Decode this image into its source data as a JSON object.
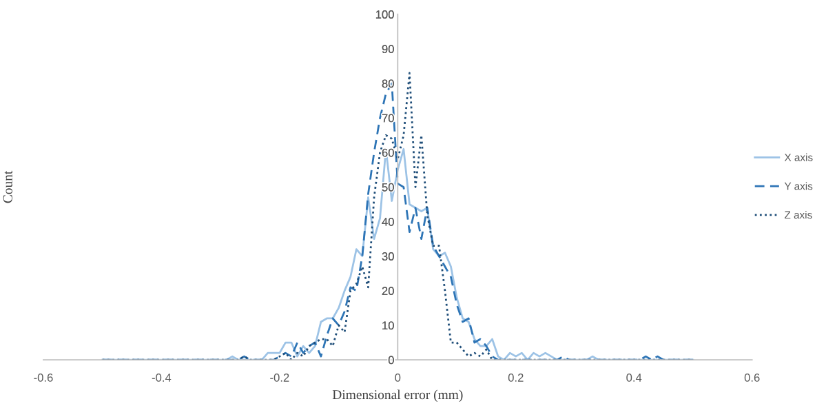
{
  "chart_data": {
    "type": "line",
    "xlabel": "Dimensional error (mm)",
    "ylabel": "Count",
    "x": [
      -0.5,
      -0.49,
      -0.48,
      -0.47,
      -0.46,
      -0.45,
      -0.44,
      -0.43,
      -0.42,
      -0.41,
      -0.4,
      -0.39,
      -0.38,
      -0.37,
      -0.36,
      -0.35,
      -0.34,
      -0.33,
      -0.32,
      -0.31,
      -0.3,
      -0.29,
      -0.28,
      -0.27,
      -0.26,
      -0.25,
      -0.24,
      -0.23,
      -0.22,
      -0.21,
      -0.2,
      -0.19,
      -0.18,
      -0.17,
      -0.16,
      -0.15,
      -0.14,
      -0.13,
      -0.12,
      -0.11,
      -0.1,
      -0.09,
      -0.08,
      -0.07,
      -0.06,
      -0.05,
      -0.04,
      -0.03,
      -0.02,
      -0.01,
      0,
      0.01,
      0.02,
      0.03,
      0.04,
      0.05,
      0.06,
      0.07,
      0.08,
      0.09,
      0.1,
      0.11,
      0.12,
      0.13,
      0.14,
      0.15,
      0.16,
      0.17,
      0.18,
      0.19,
      0.2,
      0.21,
      0.22,
      0.23,
      0.24,
      0.25,
      0.26,
      0.27,
      0.28,
      0.29,
      0.3,
      0.31,
      0.32,
      0.33,
      0.34,
      0.35,
      0.36,
      0.37,
      0.38,
      0.39,
      0.4,
      0.41,
      0.42,
      0.43,
      0.44,
      0.45,
      0.46,
      0.47,
      0.48,
      0.49,
      0.5
    ],
    "series": [
      {
        "name": "X axis",
        "color": "#9dc3e6",
        "line_style": "solid",
        "values": [
          0,
          0,
          0,
          0,
          0,
          0,
          0,
          0,
          0,
          0,
          0,
          0,
          0,
          0,
          0,
          0,
          0,
          0,
          0,
          0,
          0,
          0,
          1,
          0,
          0,
          0,
          0,
          0,
          2,
          2,
          2,
          5,
          5,
          1,
          4,
          2,
          4,
          11,
          12,
          12,
          15,
          20,
          24,
          32,
          30,
          47,
          35,
          41,
          61,
          46,
          55,
          61,
          45,
          44,
          43,
          44,
          32,
          30,
          31,
          27,
          18,
          12,
          11,
          6,
          4,
          4,
          6,
          1,
          0,
          2,
          1,
          2,
          0,
          2,
          1,
          2,
          1,
          0,
          0,
          0,
          0,
          0,
          0,
          1,
          0,
          0,
          0,
          0,
          0,
          0,
          0,
          0,
          0,
          0,
          0,
          0,
          0,
          0,
          0,
          0,
          0
        ]
      },
      {
        "name": "Y axis",
        "color": "#2e75b6",
        "line_style": "dashed",
        "values": [
          0,
          0,
          0,
          0,
          0,
          0,
          0,
          0,
          0,
          0,
          0,
          0,
          0,
          0,
          0,
          0,
          0,
          0,
          0,
          0,
          0,
          0,
          0,
          0,
          1,
          0,
          0,
          0,
          0,
          0,
          1,
          2,
          1,
          5,
          2,
          4,
          5,
          1,
          7,
          12,
          10,
          14,
          21,
          20,
          30,
          48,
          60,
          70,
          77,
          80,
          51,
          50,
          37,
          44,
          35,
          44,
          33,
          30,
          27,
          24,
          16,
          11,
          12,
          5,
          6,
          4,
          1,
          0,
          0,
          0,
          0,
          0,
          0,
          0,
          0,
          0,
          0,
          0,
          1,
          0,
          0,
          0,
          0,
          0,
          0,
          0,
          0,
          0,
          0,
          0,
          0,
          0,
          1,
          0,
          1,
          0,
          0,
          0,
          0,
          0,
          0
        ]
      },
      {
        "name": "Z axis",
        "color": "#1f4e79",
        "line_style": "dotted",
        "values": [
          0,
          0,
          0,
          0,
          0,
          0,
          0,
          0,
          0,
          0,
          0,
          0,
          0,
          0,
          0,
          0,
          0,
          0,
          0,
          0,
          0,
          0,
          0,
          0,
          1,
          0,
          0,
          0,
          0,
          0,
          1,
          2,
          0,
          2,
          1,
          4,
          5,
          6,
          6,
          4,
          10,
          8,
          20,
          22,
          27,
          21,
          47,
          60,
          65,
          64,
          58,
          65,
          83,
          50,
          65,
          42,
          33,
          33,
          20,
          5,
          5,
          3,
          1,
          2,
          1,
          3,
          0,
          0,
          0,
          0,
          0,
          0,
          0,
          0,
          0,
          0,
          0,
          0,
          0,
          0,
          0,
          0,
          0,
          0,
          0,
          0,
          0,
          0,
          0,
          0,
          0,
          0,
          0,
          0,
          0,
          0,
          0,
          0,
          0,
          0,
          0
        ]
      }
    ],
    "xlim": [
      -0.6,
      0.6
    ],
    "xticks": [
      {
        "value": -0.6,
        "label": "-0.6"
      },
      {
        "value": -0.4,
        "label": "-0.4"
      },
      {
        "value": -0.2,
        "label": "-0.2"
      },
      0,
      0.2,
      0.4,
      0.6
    ],
    "ylim": [
      0,
      100
    ],
    "yticks": [
      0,
      10,
      20,
      30,
      40,
      50,
      60,
      70,
      80,
      90,
      100
    ],
    "grid": false,
    "legend": "right",
    "marker": "none"
  }
}
